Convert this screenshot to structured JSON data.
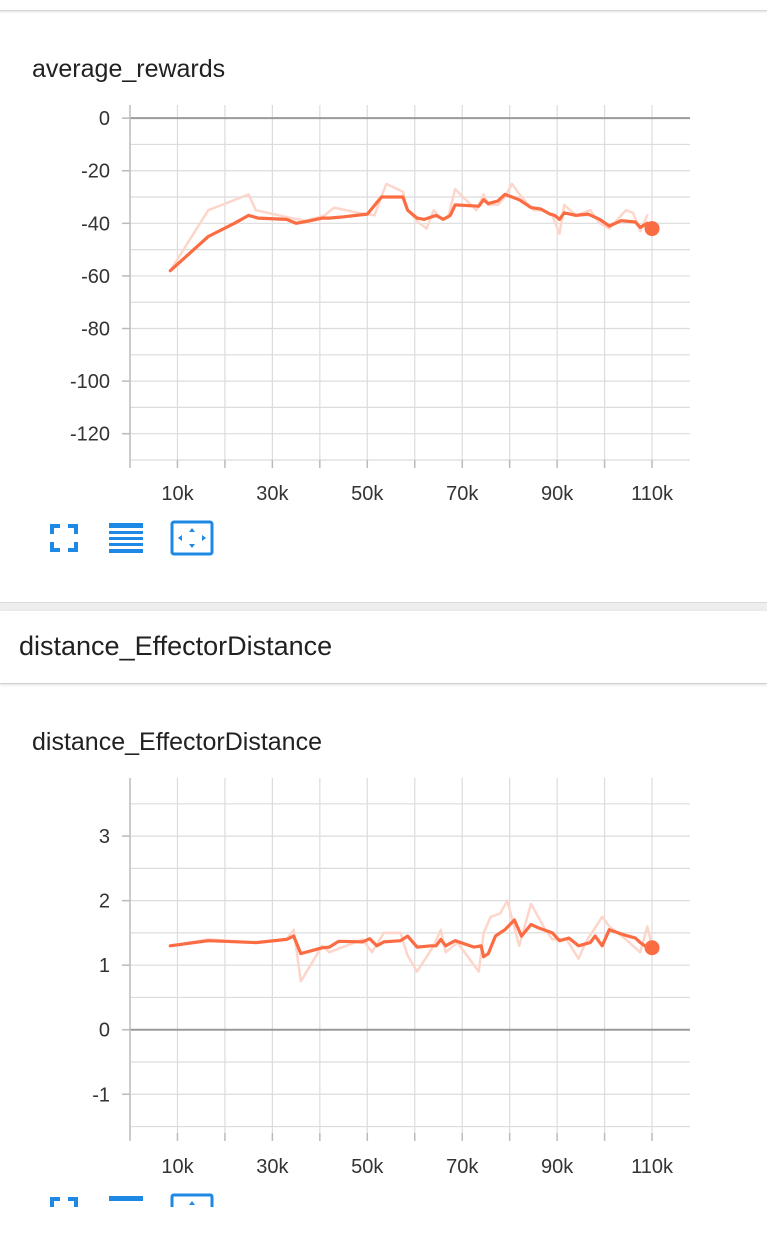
{
  "colors": {
    "series_line": "#fc6c43",
    "series_raw": "#fdd6cb",
    "grid": "#dcdcdc",
    "zero_line": "#9a9a9a",
    "icon_blue": "#1e88e5"
  },
  "section": {
    "header": "distance_EffectorDistance"
  },
  "toolbar": {
    "icons": [
      "fit-to-screen-icon",
      "toggle-y-log-icon",
      "fit-domain-icon"
    ]
  },
  "chart_data": [
    {
      "type": "line",
      "title": "average_rewards",
      "xlabel": "",
      "ylabel": "",
      "xlim": [
        0,
        118000
      ],
      "ylim": [
        -130,
        5
      ],
      "x_ticks": [
        10000,
        30000,
        50000,
        70000,
        90000,
        110000
      ],
      "x_tick_labels": [
        "10k",
        "30k",
        "50k",
        "70k",
        "90k",
        "110k"
      ],
      "y_ticks": [
        0,
        -20,
        -40,
        -60,
        -80,
        -100,
        -120
      ],
      "y_tick_labels": [
        "0",
        "-20",
        "-40",
        "-60",
        "-80",
        "-100",
        "-120"
      ],
      "grid": true,
      "legend": "none",
      "series": [
        {
          "role": "raw",
          "x": [
            8500,
            16500,
            25000,
            26500,
            34000,
            37000,
            41000,
            43000,
            48000,
            51500,
            54000,
            57500,
            58500,
            61000,
            62500,
            64000,
            65500,
            67000,
            68500,
            73000,
            74500,
            75500,
            77500,
            79000,
            80500,
            82500,
            85000,
            87000,
            89000,
            90500,
            91500,
            94000,
            97000,
            99000,
            101000,
            103500,
            104500,
            106000,
            107500,
            109000
          ],
          "y": [
            -58,
            -35,
            -29,
            -35,
            -38,
            -39,
            -37,
            -34,
            -36,
            -37,
            -25,
            -28,
            -35,
            -40,
            -42,
            -35,
            -38,
            -38,
            -27,
            -35,
            -29,
            -33,
            -33,
            -30,
            -25,
            -30,
            -35,
            -35,
            -37,
            -44,
            -33,
            -37,
            -35,
            -40,
            -42,
            -37,
            -35,
            -36,
            -43,
            -37
          ]
        },
        {
          "role": "smoothed",
          "x": [
            8500,
            16500,
            22000,
            25000,
            27000,
            33000,
            35000,
            38000,
            40500,
            42000,
            45000,
            50000,
            53000,
            57500,
            58500,
            60500,
            62000,
            64500,
            66000,
            67500,
            68500,
            73500,
            74500,
            75500,
            77500,
            79000,
            80500,
            82000,
            84500,
            86500,
            88500,
            89500,
            90500,
            91500,
            94000,
            96500,
            99000,
            101000,
            103500,
            106500,
            107500,
            109000,
            110000
          ],
          "y": [
            -58,
            -45,
            -40,
            -37,
            -38,
            -38.5,
            -40,
            -39,
            -38,
            -38,
            -37.5,
            -36.5,
            -30,
            -30,
            -35,
            -38,
            -38.5,
            -37,
            -38.5,
            -37,
            -33,
            -33.5,
            -31,
            -32.5,
            -31.5,
            -29,
            -30,
            -31,
            -34,
            -34.5,
            -36.5,
            -37,
            -38.5,
            -36,
            -37,
            -36.5,
            -38.5,
            -41,
            -39,
            -39.5,
            -41.5,
            -40,
            -42
          ]
        }
      ]
    },
    {
      "type": "line",
      "title": "distance_EffectorDistance",
      "xlabel": "",
      "ylabel": "",
      "xlim": [
        0,
        118000
      ],
      "ylim": [
        -1.6,
        3.9
      ],
      "x_ticks": [
        10000,
        30000,
        50000,
        70000,
        90000,
        110000
      ],
      "x_tick_labels": [
        "10k",
        "30k",
        "50k",
        "70k",
        "90k",
        "110k"
      ],
      "y_ticks": [
        3,
        2,
        1,
        0,
        -1
      ],
      "y_tick_labels": [
        "3",
        "2",
        "1",
        "0",
        "-1"
      ],
      "grid": true,
      "legend": "none",
      "series": [
        {
          "role": "raw",
          "x": [
            8500,
            16500,
            26500,
            33000,
            34500,
            36000,
            40500,
            42000,
            49000,
            51000,
            53500,
            57000,
            58500,
            60500,
            64000,
            65500,
            66500,
            69000,
            73500,
            74500,
            76000,
            78000,
            79500,
            82000,
            84500,
            87500,
            89000,
            92000,
            94500,
            96000,
            99500,
            101000,
            104500,
            107500,
            109000,
            110000
          ],
          "y": [
            1.3,
            1.4,
            1.35,
            1.4,
            1.55,
            0.75,
            1.3,
            1.2,
            1.4,
            1.2,
            1.5,
            1.5,
            1.15,
            0.9,
            1.3,
            1.55,
            1.2,
            1.35,
            0.9,
            1.5,
            1.75,
            1.8,
            2.0,
            1.3,
            1.95,
            1.55,
            1.4,
            1.4,
            1.1,
            1.35,
            1.75,
            1.6,
            1.4,
            1.2,
            1.6,
            1.3
          ]
        },
        {
          "role": "smoothed",
          "x": [
            8500,
            16500,
            26500,
            33000,
            34500,
            36000,
            40500,
            42000,
            44000,
            49000,
            50500,
            52000,
            53500,
            57000,
            58500,
            60500,
            63500,
            64500,
            65500,
            66500,
            68500,
            72500,
            74000,
            74500,
            75500,
            77000,
            79000,
            81000,
            82500,
            84500,
            86000,
            89000,
            90500,
            92500,
            94500,
            97000,
            98000,
            99500,
            101000,
            104000,
            106500,
            107500,
            108500,
            110000
          ],
          "y": [
            1.3,
            1.38,
            1.35,
            1.4,
            1.45,
            1.18,
            1.27,
            1.28,
            1.37,
            1.36,
            1.41,
            1.3,
            1.36,
            1.38,
            1.45,
            1.28,
            1.3,
            1.3,
            1.4,
            1.3,
            1.38,
            1.28,
            1.3,
            1.13,
            1.18,
            1.45,
            1.55,
            1.7,
            1.45,
            1.63,
            1.58,
            1.5,
            1.38,
            1.42,
            1.3,
            1.35,
            1.45,
            1.3,
            1.55,
            1.47,
            1.42,
            1.35,
            1.3,
            1.27
          ]
        }
      ]
    }
  ]
}
